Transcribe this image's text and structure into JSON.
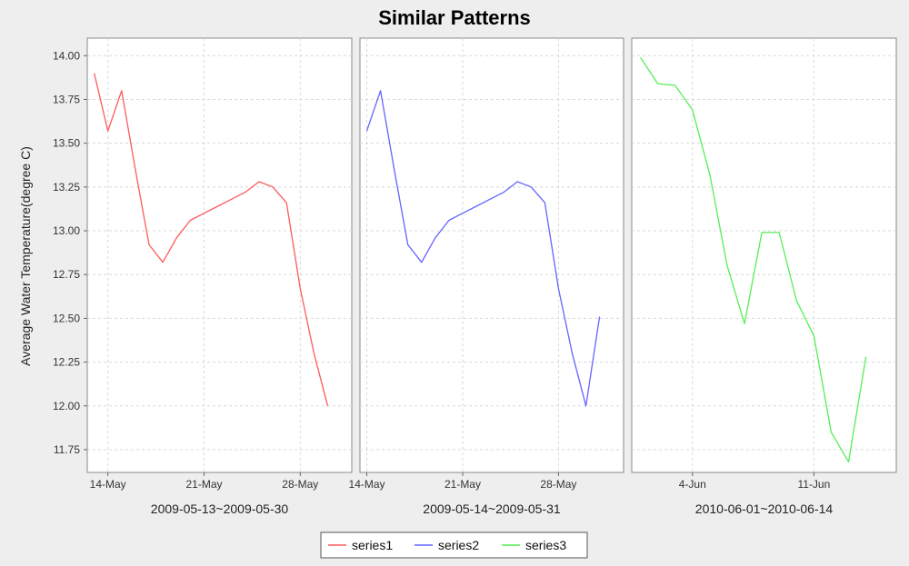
{
  "chart_data": {
    "type": "line",
    "title": "Similar Patterns",
    "ylabel": "Average Water Temperature(degree C)",
    "ylim": [
      11.62,
      14.1
    ],
    "y_ticks": [
      "14.00",
      "13.75",
      "13.50",
      "13.25",
      "13.00",
      "12.75",
      "12.50",
      "12.25",
      "12.00",
      "11.75"
    ],
    "grid": true,
    "legend_placement": "bottom-center",
    "panels": [
      {
        "xlabel": "2009-05-13~2009-05-30",
        "x_ticks": [
          "14-May",
          "21-May",
          "28-May"
        ],
        "series": [
          {
            "name": "series1",
            "color": "#ff5a5a",
            "x": [
              "2009-05-13",
              "2009-05-14",
              "2009-05-15",
              "2009-05-16",
              "2009-05-17",
              "2009-05-18",
              "2009-05-19",
              "2009-05-20",
              "2009-05-21",
              "2009-05-22",
              "2009-05-23",
              "2009-05-24",
              "2009-05-25",
              "2009-05-26",
              "2009-05-27",
              "2009-05-28",
              "2009-05-29",
              "2009-05-30"
            ],
            "values": [
              13.9,
              13.57,
              13.8,
              13.35,
              12.92,
              12.82,
              12.96,
              13.06,
              13.1,
              13.14,
              13.18,
              13.22,
              13.28,
              13.25,
              13.16,
              12.67,
              12.3,
              12.0
            ]
          }
        ]
      },
      {
        "xlabel": "2009-05-14~2009-05-31",
        "x_ticks": [
          "14-May",
          "21-May",
          "28-May"
        ],
        "series": [
          {
            "name": "series2",
            "color": "#6464ff",
            "x": [
              "2009-05-14",
              "2009-05-15",
              "2009-05-16",
              "2009-05-17",
              "2009-05-18",
              "2009-05-19",
              "2009-05-20",
              "2009-05-21",
              "2009-05-22",
              "2009-05-23",
              "2009-05-24",
              "2009-05-25",
              "2009-05-26",
              "2009-05-27",
              "2009-05-28",
              "2009-05-29",
              "2009-05-30",
              "2009-05-31"
            ],
            "values": [
              13.57,
              13.8,
              13.35,
              12.92,
              12.82,
              12.96,
              13.06,
              13.1,
              13.14,
              13.18,
              13.22,
              13.28,
              13.25,
              13.16,
              12.67,
              12.3,
              12.0,
              12.51
            ]
          }
        ]
      },
      {
        "xlabel": "2010-06-01~2010-06-14",
        "x_ticks": [
          "4-Jun",
          "11-Jun"
        ],
        "series": [
          {
            "name": "series3",
            "color": "#55ee55",
            "x": [
              "2010-06-01",
              "2010-06-02",
              "2010-06-03",
              "2010-06-04",
              "2010-06-05",
              "2010-06-06",
              "2010-06-07",
              "2010-06-08",
              "2010-06-09",
              "2010-06-10",
              "2010-06-11",
              "2010-06-12",
              "2010-06-13",
              "2010-06-14"
            ],
            "values": [
              13.99,
              13.84,
              13.83,
              13.69,
              13.32,
              12.8,
              12.47,
              12.99,
              12.99,
              12.6,
              12.4,
              11.85,
              11.68,
              12.28
            ]
          }
        ]
      }
    ],
    "legend": [
      {
        "name": "series1",
        "color": "#ff5a5a"
      },
      {
        "name": "series2",
        "color": "#6464ff"
      },
      {
        "name": "series3",
        "color": "#55ee55"
      }
    ]
  }
}
